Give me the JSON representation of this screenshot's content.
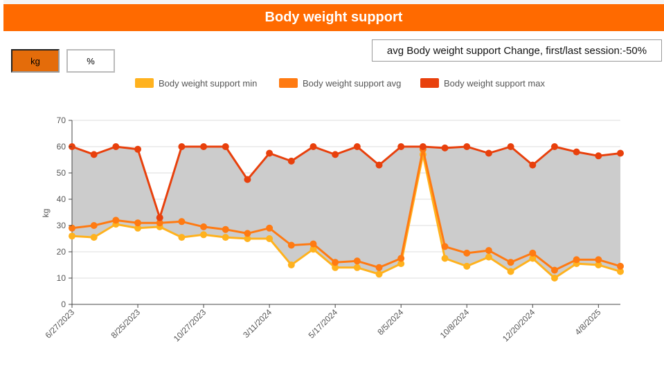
{
  "header": {
    "title": "Body weight support"
  },
  "unit_toggle": {
    "options": [
      "kg",
      "%"
    ],
    "selected": "kg"
  },
  "summary": {
    "text": "avg Body weight support Change, first/last session:-50%"
  },
  "colors": {
    "title_bar": "#ff6a00",
    "min": "#ffb21e",
    "avg": "#ff7a12",
    "max": "#e8400c",
    "band": "#c9c9c9"
  },
  "chart_data": {
    "type": "line",
    "ylabel": "kg",
    "ylim": [
      0,
      70
    ],
    "yticks": [
      0,
      10,
      20,
      30,
      40,
      50,
      60,
      70
    ],
    "grid": true,
    "legend_position": "top-center",
    "band_between": [
      "Body weight support min",
      "Body weight support max"
    ],
    "x_tick_labels": [
      "6/27/2023",
      "8/25/2023",
      "10/27/2023",
      "3/11/2024",
      "5/17/2024",
      "8/5/2024",
      "10/8/2024",
      "12/20/2024",
      "4/8/2025"
    ],
    "x_tick_indices": [
      0,
      3,
      6,
      9,
      12,
      15,
      18,
      21,
      24
    ],
    "session_count": 26,
    "series": [
      {
        "name": "Body weight support min",
        "values": [
          26,
          25.5,
          30.5,
          29,
          29.5,
          25.5,
          26.5,
          25.5,
          25,
          25,
          15,
          21,
          14,
          14,
          11.5,
          15.5,
          57,
          17.5,
          14.5,
          18,
          12.5,
          17.5,
          10,
          15.5,
          15,
          12.5
        ]
      },
      {
        "name": "Body weight support avg",
        "values": [
          29,
          30,
          32,
          31,
          31,
          31.5,
          29.5,
          28.5,
          27,
          29,
          22.5,
          23,
          16,
          16.5,
          14,
          17.5,
          59,
          22,
          19.5,
          20.5,
          16,
          19.5,
          13,
          17,
          17,
          14.5
        ]
      },
      {
        "name": "Body weight support max",
        "values": [
          60,
          57,
          60,
          59,
          33,
          60,
          60,
          60,
          47.5,
          57.5,
          54.5,
          60,
          57,
          60,
          53,
          60,
          60,
          59.5,
          60,
          57.5,
          60,
          53,
          60,
          58,
          56.5,
          57.5
        ]
      }
    ]
  }
}
